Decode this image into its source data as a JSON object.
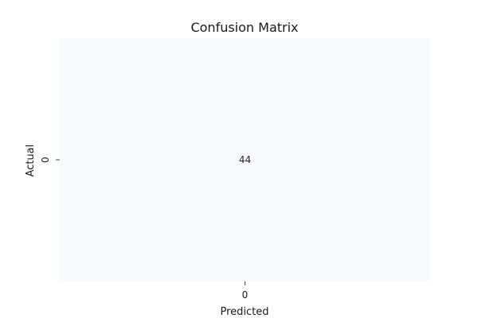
{
  "chart_data": {
    "type": "heatmap",
    "title": "Confusion Matrix",
    "xlabel": "Predicted",
    "ylabel": "Actual",
    "x_categories": [
      "0"
    ],
    "y_categories": [
      "0"
    ],
    "values": [
      [
        44
      ]
    ],
    "colormap": "Blues",
    "colors": {
      "cell_fill": "#f7fbff",
      "text": "#262626",
      "axis_text": "#1a1a1a"
    },
    "colorbar": false,
    "grid": false
  }
}
